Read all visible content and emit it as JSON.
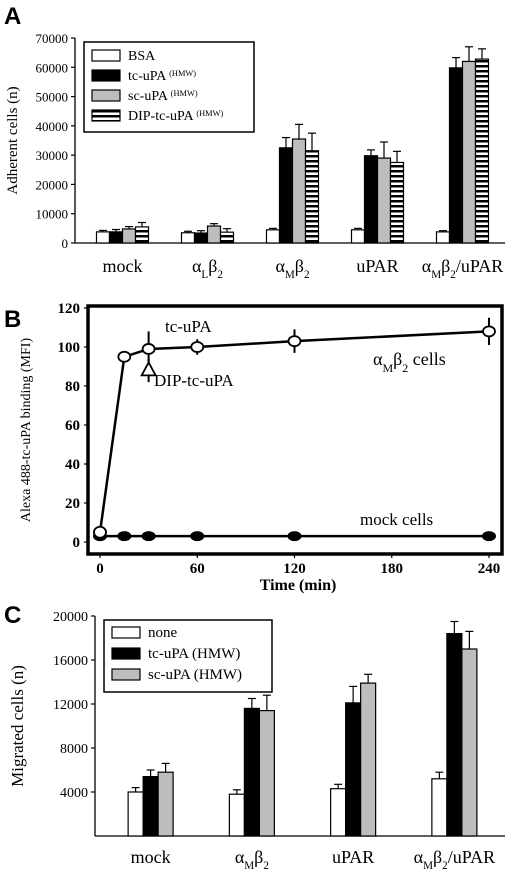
{
  "colors": {
    "white": "#ffffff",
    "black": "#000000",
    "gray": "#bdbdbd",
    "stripe": "#000000"
  },
  "chart_data": [
    {
      "panel": "A",
      "type": "bar",
      "ylabel": "Adherent cells (n)",
      "xlabel": "",
      "ylim": [
        0,
        70000
      ],
      "yticks": [
        0,
        10000,
        20000,
        30000,
        40000,
        50000,
        60000,
        70000
      ],
      "ytick_labels": [
        "0",
        "10000",
        "20000",
        "30000",
        "40000",
        "50000",
        "60000",
        "70000"
      ],
      "categories": [
        {
          "base": "mock",
          "sub1": "",
          "mid": "",
          "sub2": ""
        },
        {
          "base": "α",
          "sub1": "L",
          "mid": "β",
          "sub2": "2"
        },
        {
          "base": "α",
          "sub1": "M",
          "mid": "β",
          "sub2": "2"
        },
        {
          "base": "uPAR",
          "sub1": "",
          "mid": "",
          "sub2": ""
        },
        {
          "base": "α",
          "sub1": "M",
          "mid": "β",
          "sub2": "2",
          "tail": "/uPAR"
        }
      ],
      "legend": [
        {
          "label": "BSA",
          "sup": ""
        },
        {
          "label": "tc-uPA ",
          "sup": "(HMW)"
        },
        {
          "label": "sc-uPA ",
          "sup": "(HMW)"
        },
        {
          "label": "DIP-tc-uPA ",
          "sup": "(HMW)"
        }
      ],
      "legend_position": "top-left",
      "series": [
        {
          "fill": "white",
          "values": [
            3800,
            3500,
            4500,
            4500,
            3800
          ],
          "errors": [
            500,
            500,
            500,
            500,
            400
          ]
        },
        {
          "fill": "black",
          "values": [
            3800,
            3400,
            32500,
            29800,
            59800
          ],
          "errors": [
            800,
            800,
            3500,
            2000,
            3500
          ]
        },
        {
          "fill": "gray",
          "values": [
            4800,
            5800,
            35500,
            29000,
            62000
          ],
          "errors": [
            800,
            800,
            5000,
            5500,
            5000
          ]
        },
        {
          "fill": "stripes",
          "values": [
            5500,
            3700,
            31500,
            27500,
            62800
          ],
          "errors": [
            1500,
            1200,
            6000,
            3800,
            3500
          ]
        }
      ]
    },
    {
      "panel": "B",
      "type": "line",
      "ylabel": "Alexa 488-tc-uPA binding (MFI)",
      "xlabel": "Time (min)",
      "xlim": [
        0,
        240
      ],
      "ylim": [
        0,
        120
      ],
      "xticks": [
        0,
        60,
        120,
        180,
        240
      ],
      "yticks": [
        0,
        20,
        40,
        60,
        80,
        100,
        120
      ],
      "series": [
        {
          "marker": "open-circle",
          "x": [
            0,
            15,
            30,
            60,
            120,
            240
          ],
          "y": [
            5,
            95,
            99,
            100,
            103,
            108
          ],
          "errors": [
            0,
            3,
            9,
            4,
            6,
            7
          ]
        },
        {
          "marker": "filled-circle",
          "x": [
            0,
            15,
            30,
            60,
            120,
            240
          ],
          "y": [
            3,
            3,
            3,
            3,
            3,
            3
          ],
          "errors": [
            0,
            0,
            0,
            0,
            0,
            0
          ]
        },
        {
          "marker": "triangle",
          "x": [
            30
          ],
          "y": [
            88
          ],
          "errors": [
            6
          ]
        }
      ],
      "annotations": {
        "tc": "tc-uPA",
        "dip": "DIP-tc-uPA",
        "mock": "mock cells",
        "am_a": "α",
        "am_m": "M",
        "am_b": "β",
        "am_2": "2",
        "am_cells": " cells"
      }
    },
    {
      "panel": "C",
      "type": "bar",
      "ylabel": "Migrated cells (n)",
      "xlabel": "",
      "ylim": [
        0,
        20000
      ],
      "yticks": [
        4000,
        8000,
        12000,
        16000,
        20000
      ],
      "ytick_labels": [
        "4000",
        "8000",
        "12000",
        "16000",
        "20000"
      ],
      "categories": [
        {
          "base": "mock",
          "sub1": "",
          "mid": "",
          "sub2": ""
        },
        {
          "base": "α",
          "sub1": "M",
          "mid": "β",
          "sub2": "2"
        },
        {
          "base": "uPAR",
          "sub1": "",
          "mid": "",
          "sub2": ""
        },
        {
          "base": "α",
          "sub1": "M",
          "mid": "β",
          "sub2": "2",
          "tail": "/uPAR"
        }
      ],
      "legend": [
        {
          "label": "none",
          "sup": ""
        },
        {
          "label": "tc-uPA (HMW)",
          "sup": ""
        },
        {
          "label": "sc-uPA (HMW)",
          "sup": ""
        }
      ],
      "legend_position": "top-left",
      "series": [
        {
          "fill": "white",
          "values": [
            4000,
            3800,
            4300,
            5200
          ],
          "errors": [
            400,
            400,
            400,
            600
          ]
        },
        {
          "fill": "black",
          "values": [
            5400,
            11600,
            12100,
            18400
          ],
          "errors": [
            600,
            900,
            1500,
            1100
          ]
        },
        {
          "fill": "gray",
          "values": [
            5800,
            11400,
            13900,
            17000
          ],
          "errors": [
            800,
            1400,
            800,
            1600
          ]
        }
      ]
    }
  ],
  "panel_letters": [
    "A",
    "B",
    "C"
  ]
}
